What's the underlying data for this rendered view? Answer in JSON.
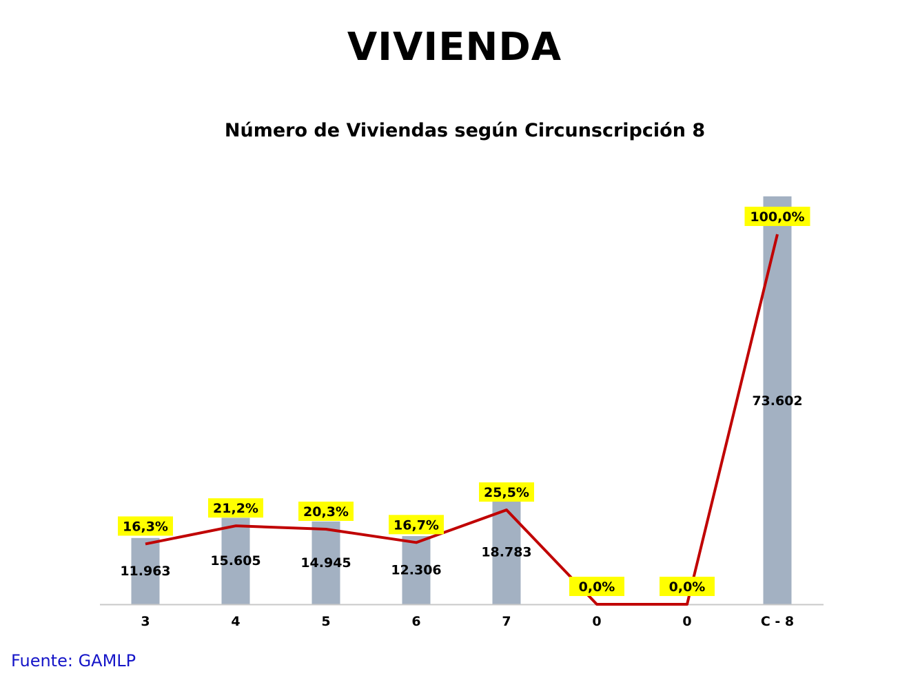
{
  "page": {
    "title": "VIVIENDA",
    "source": "Fuente:  GAMLP"
  },
  "chart_data": {
    "type": "bar",
    "title": "Número de Viviendas según Circunscripción 8",
    "xlabel": "",
    "ylabel": "",
    "categories": [
      "3",
      "4",
      "5",
      "6",
      "7",
      "0",
      "0",
      "C - 8"
    ],
    "series": [
      {
        "type": "bar",
        "values": [
          11963,
          15605,
          14945,
          12306,
          18783,
          0,
          0,
          73602
        ],
        "labels": [
          "11.963",
          "15.605",
          "14.945",
          "12.306",
          "18.783",
          "",
          "",
          "73.602"
        ]
      },
      {
        "type": "line",
        "values": [
          16.3,
          21.2,
          20.3,
          16.7,
          25.5,
          0.0,
          0.0,
          100.0
        ],
        "labels": [
          "16,3%",
          "21,2%",
          "20,3%",
          "16,7%",
          "25,5%",
          "0,0%",
          "0,0%",
          "100,0%"
        ]
      }
    ],
    "ylim": [
      0,
      73602
    ],
    "grid": false,
    "colors": {
      "bar": "#a3b1c2",
      "line": "#c00000",
      "label_highlight": "#ffff00",
      "axis": "#c8c8c8"
    }
  }
}
